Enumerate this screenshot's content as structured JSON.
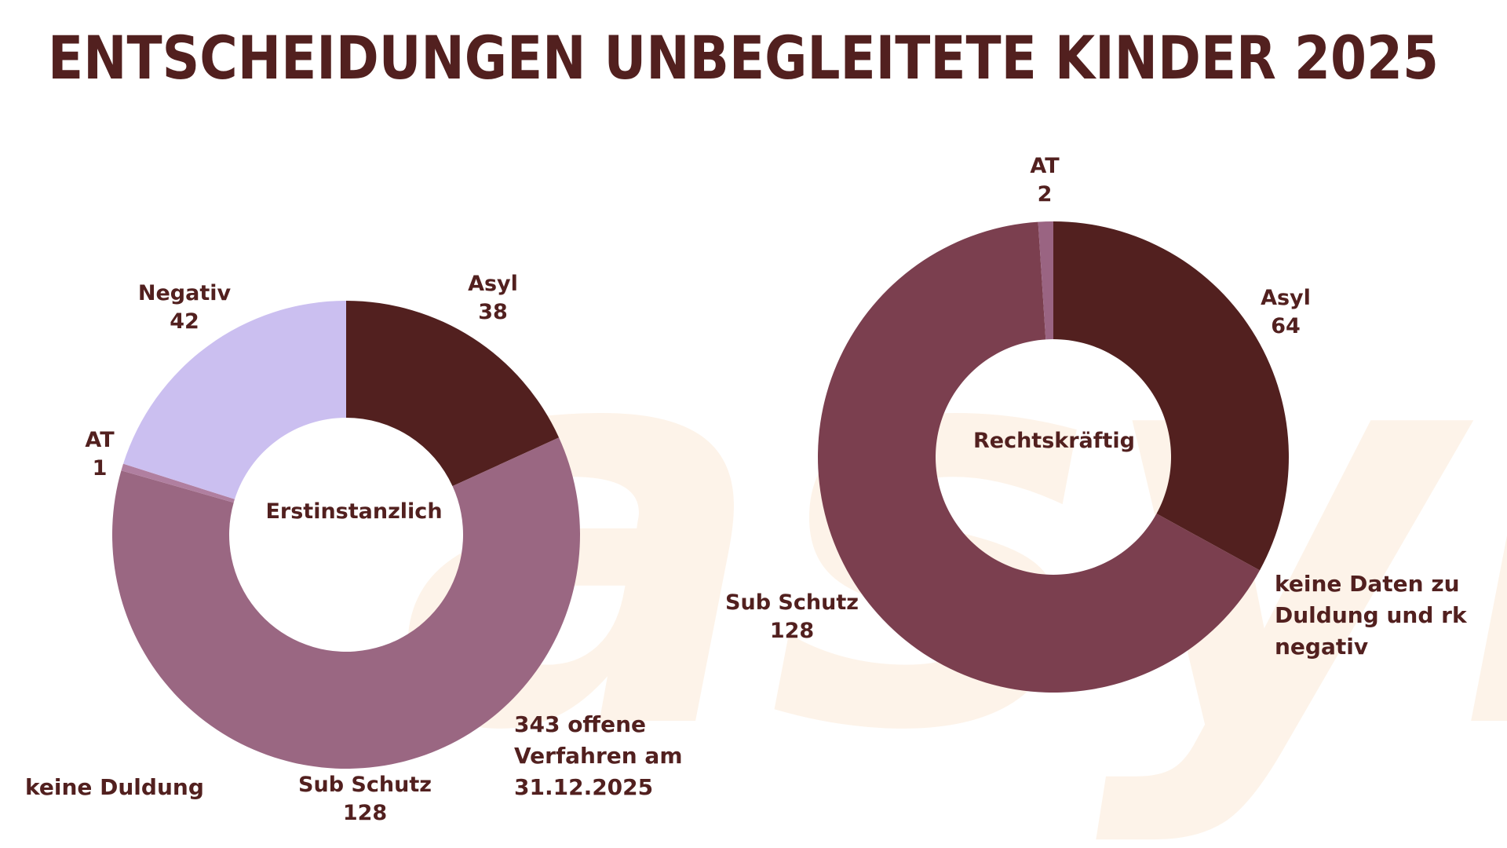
{
  "title": "ENTSCHEIDUNGEN UNBEGLEITETE KINDER 2025",
  "watermark": "asyl",
  "chart_data": [
    {
      "type": "donut",
      "center_label": "Erstinstanzlich",
      "categories": [
        "Asyl",
        "Sub Schutz",
        "AT",
        "Negativ"
      ],
      "values": [
        38,
        128,
        1,
        42
      ],
      "colors": [
        "#52201f",
        "#9a6782",
        "#b07fa0",
        "#cbbff0"
      ],
      "annotations": [
        "keine Duldung",
        "343 offene Verfahren am 31.12.2025"
      ]
    },
    {
      "type": "donut",
      "center_label": "Rechtskräftig",
      "categories": [
        "Asyl",
        "Sub Schutz",
        "AT"
      ],
      "values": [
        64,
        128,
        2
      ],
      "colors": [
        "#52201f",
        "#7b3f4f",
        "#9a6482"
      ],
      "annotations": [
        "keine Daten zu Duldung und rk negativ"
      ]
    }
  ]
}
